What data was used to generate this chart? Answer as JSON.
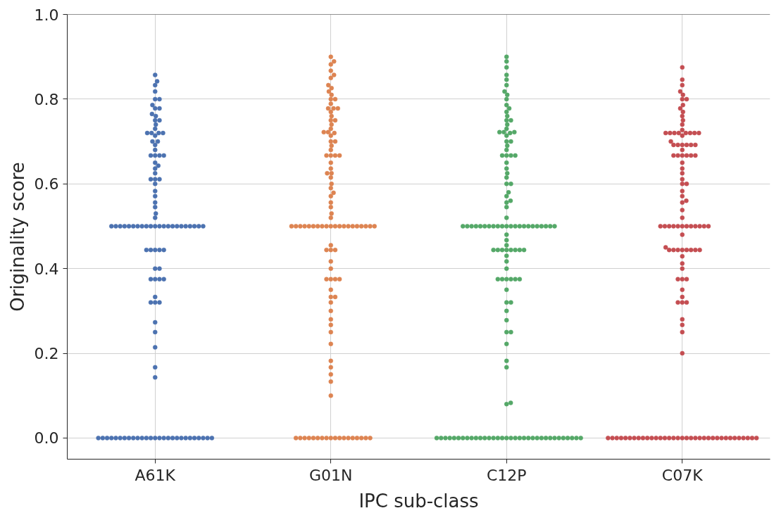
{
  "chart_data": {
    "type": "scatter",
    "xlabel": "IPC sub-class",
    "ylabel": "Originality score",
    "categories": [
      "A61K",
      "G01N",
      "C12P",
      "C07K"
    ],
    "ylim": [
      -0.05,
      1.0
    ],
    "yticks": [
      {
        "value": 0,
        "label": "0.0"
      },
      0.2,
      0.4,
      0.6,
      0.8,
      {
        "value": 1,
        "label": "1.0"
      }
    ],
    "grid": true,
    "marker": "circle",
    "series": [
      {
        "color": "#4c72b0",
        "x": [
          "A61K",
          "A61K",
          "A61K",
          "A61K",
          "A61K",
          "A61K",
          "A61K",
          "A61K",
          "A61K",
          "A61K",
          "A61K",
          "A61K",
          "A61K",
          "A61K",
          "A61K",
          "A61K",
          "A61K",
          "A61K",
          "A61K",
          "A61K",
          "A61K",
          "A61K",
          "A61K",
          "A61K",
          "A61K",
          "A61K",
          "A61K",
          "A61K",
          "A61K",
          "A61K",
          "A61K",
          "A61K",
          "A61K",
          "A61K",
          "A61K",
          "A61K",
          "A61K",
          "A61K",
          "A61K",
          "A61K",
          "A61K",
          "A61K",
          "A61K",
          "A61K",
          "A61K",
          "A61K",
          "A61K",
          "A61K",
          "A61K",
          "A61K",
          "A61K",
          "A61K",
          "A61K",
          "A61K",
          "A61K",
          "A61K",
          "A61K",
          "A61K",
          "A61K",
          "A61K",
          "A61K",
          "A61K",
          "A61K",
          "A61K",
          "A61K",
          "A61K",
          "A61K",
          "A61K",
          "A61K",
          "A61K",
          "A61K",
          "A61K",
          "A61K",
          "A61K",
          "A61K",
          "A61K",
          "A61K",
          "A61K",
          "A61K",
          "A61K",
          "A61K",
          "A61K",
          "A61K",
          "A61K",
          "A61K",
          "A61K",
          "A61K",
          "A61K",
          "A61K",
          "A61K",
          "A61K",
          "A61K",
          "A61K",
          "A61K",
          "A61K",
          "A61K",
          "A61K",
          "A61K",
          "A61K",
          "A61K",
          "A61K",
          "A61K",
          "A61K",
          "A61K",
          "A61K",
          "A61K",
          "A61K",
          "A61K",
          "A61K",
          "A61K",
          "A61K"
        ],
        "values": [
          0,
          0,
          0,
          0,
          0,
          0,
          0,
          0,
          0,
          0,
          0,
          0,
          0,
          0,
          0,
          0,
          0,
          0,
          0,
          0,
          0,
          0,
          0,
          0,
          0,
          0,
          0,
          0.143,
          0.167,
          0.214,
          0.25,
          0.273,
          0.32,
          0.32,
          0.32,
          0.333,
          0.375,
          0.375,
          0.375,
          0.375,
          0.4,
          0.4,
          0.444,
          0.444,
          0.444,
          0.444,
          0.444,
          0.5,
          0.5,
          0.5,
          0.5,
          0.5,
          0.5,
          0.5,
          0.5,
          0.5,
          0.5,
          0.5,
          0.5,
          0.5,
          0.5,
          0.5,
          0.5,
          0.5,
          0.5,
          0.5,
          0.5,
          0.5,
          0.5,
          0.52,
          0.53,
          0.545,
          0.556,
          0.571,
          0.583,
          0.6,
          0.611,
          0.611,
          0.611,
          0.625,
          0.636,
          0.643,
          0.65,
          0.667,
          0.667,
          0.667,
          0.667,
          0.68,
          0.692,
          0.7,
          0.7,
          0.714,
          0.72,
          0.72,
          0.72,
          0.72,
          0.73,
          0.74,
          0.75,
          0.75,
          0.76,
          0.765,
          0.778,
          0.778,
          0.786,
          0.8,
          0.8,
          0.818,
          0.833,
          0.842,
          0.857
        ]
      },
      {
        "color": "#dd8452",
        "x": [
          "G01N",
          "G01N",
          "G01N",
          "G01N",
          "G01N",
          "G01N",
          "G01N",
          "G01N",
          "G01N",
          "G01N",
          "G01N",
          "G01N",
          "G01N",
          "G01N",
          "G01N",
          "G01N",
          "G01N",
          "G01N",
          "G01N",
          "G01N",
          "G01N",
          "G01N",
          "G01N",
          "G01N",
          "G01N",
          "G01N",
          "G01N",
          "G01N",
          "G01N",
          "G01N",
          "G01N",
          "G01N",
          "G01N",
          "G01N",
          "G01N",
          "G01N",
          "G01N",
          "G01N",
          "G01N",
          "G01N",
          "G01N",
          "G01N",
          "G01N",
          "G01N",
          "G01N",
          "G01N",
          "G01N",
          "G01N",
          "G01N",
          "G01N",
          "G01N",
          "G01N",
          "G01N",
          "G01N",
          "G01N",
          "G01N",
          "G01N",
          "G01N",
          "G01N",
          "G01N",
          "G01N",
          "G01N",
          "G01N",
          "G01N",
          "G01N",
          "G01N",
          "G01N",
          "G01N",
          "G01N",
          "G01N",
          "G01N",
          "G01N",
          "G01N",
          "G01N",
          "G01N",
          "G01N",
          "G01N",
          "G01N",
          "G01N",
          "G01N",
          "G01N",
          "G01N",
          "G01N",
          "G01N",
          "G01N",
          "G01N",
          "G01N",
          "G01N",
          "G01N",
          "G01N",
          "G01N",
          "G01N",
          "G01N",
          "G01N",
          "G01N",
          "G01N",
          "G01N",
          "G01N",
          "G01N",
          "G01N",
          "G01N",
          "G01N",
          "G01N",
          "G01N",
          "G01N",
          "G01N",
          "G01N",
          "G01N",
          "G01N"
        ],
        "values": [
          0,
          0,
          0,
          0,
          0,
          0,
          0,
          0,
          0,
          0,
          0,
          0,
          0,
          0,
          0,
          0,
          0,
          0,
          0.1,
          0.133,
          0.15,
          0.167,
          0.182,
          0.222,
          0.25,
          0.267,
          0.28,
          0.3,
          0.32,
          0.333,
          0.333,
          0.35,
          0.375,
          0.375,
          0.375,
          0.375,
          0.4,
          0.417,
          0.444,
          0.444,
          0.444,
          0.455,
          0.5,
          0.5,
          0.5,
          0.5,
          0.5,
          0.5,
          0.5,
          0.5,
          0.5,
          0.5,
          0.5,
          0.5,
          0.5,
          0.5,
          0.5,
          0.5,
          0.5,
          0.5,
          0.5,
          0.5,
          0.52,
          0.53,
          0.545,
          0.556,
          0.571,
          0.579,
          0.59,
          0.6,
          0.615,
          0.625,
          0.625,
          0.636,
          0.65,
          0.667,
          0.667,
          0.667,
          0.667,
          0.68,
          0.69,
          0.7,
          0.7,
          0.714,
          0.72,
          0.722,
          0.722,
          0.73,
          0.74,
          0.75,
          0.75,
          0.76,
          0.77,
          0.778,
          0.778,
          0.778,
          0.789,
          0.8,
          0.8,
          0.81,
          0.818,
          0.826,
          0.833,
          0.85,
          0.857,
          0.867,
          0.882,
          0.889,
          0.9
        ]
      },
      {
        "color": "#55a868",
        "x": [
          "C12P",
          "C12P",
          "C12P",
          "C12P",
          "C12P",
          "C12P",
          "C12P",
          "C12P",
          "C12P",
          "C12P",
          "C12P",
          "C12P",
          "C12P",
          "C12P",
          "C12P",
          "C12P",
          "C12P",
          "C12P",
          "C12P",
          "C12P",
          "C12P",
          "C12P",
          "C12P",
          "C12P",
          "C12P",
          "C12P",
          "C12P",
          "C12P",
          "C12P",
          "C12P",
          "C12P",
          "C12P",
          "C12P",
          "C12P",
          "C12P",
          "C12P",
          "C12P",
          "C12P",
          "C12P",
          "C12P",
          "C12P",
          "C12P",
          "C12P",
          "C12P",
          "C12P",
          "C12P",
          "C12P",
          "C12P",
          "C12P",
          "C12P",
          "C12P",
          "C12P",
          "C12P",
          "C12P",
          "C12P",
          "C12P",
          "C12P",
          "C12P",
          "C12P",
          "C12P",
          "C12P",
          "C12P",
          "C12P",
          "C12P",
          "C12P",
          "C12P",
          "C12P",
          "C12P",
          "C12P",
          "C12P",
          "C12P",
          "C12P",
          "C12P",
          "C12P",
          "C12P",
          "C12P",
          "C12P",
          "C12P",
          "C12P",
          "C12P",
          "C12P",
          "C12P",
          "C12P",
          "C12P",
          "C12P",
          "C12P",
          "C12P",
          "C12P",
          "C12P",
          "C12P",
          "C12P",
          "C12P",
          "C12P",
          "C12P",
          "C12P",
          "C12P",
          "C12P",
          "C12P",
          "C12P",
          "C12P",
          "C12P",
          "C12P",
          "C12P",
          "C12P",
          "C12P",
          "C12P",
          "C12P",
          "C12P",
          "C12P",
          "C12P",
          "C12P",
          "C12P",
          "C12P",
          "C12P",
          "C12P",
          "C12P",
          "C12P",
          "C12P",
          "C12P",
          "C12P",
          "C12P",
          "C12P",
          "C12P",
          "C12P",
          "C12P",
          "C12P",
          "C12P",
          "C12P",
          "C12P",
          "C12P"
        ],
        "values": [
          0,
          0,
          0,
          0,
          0,
          0,
          0,
          0,
          0,
          0,
          0,
          0,
          0,
          0,
          0,
          0,
          0,
          0,
          0,
          0,
          0,
          0,
          0,
          0,
          0,
          0,
          0,
          0,
          0,
          0,
          0,
          0,
          0,
          0,
          0.08,
          0.083,
          0.167,
          0.182,
          0.222,
          0.25,
          0.25,
          0.278,
          0.3,
          0.32,
          0.32,
          0.35,
          0.375,
          0.375,
          0.375,
          0.375,
          0.375,
          0.375,
          0.4,
          0.417,
          0.43,
          0.444,
          0.444,
          0.444,
          0.444,
          0.444,
          0.444,
          0.444,
          0.444,
          0.455,
          0.467,
          0.48,
          0.5,
          0.5,
          0.5,
          0.5,
          0.5,
          0.5,
          0.5,
          0.5,
          0.5,
          0.5,
          0.5,
          0.5,
          0.5,
          0.5,
          0.5,
          0.5,
          0.5,
          0.5,
          0.5,
          0.5,
          0.5,
          0.5,
          0.52,
          0.545,
          0.556,
          0.56,
          0.571,
          0.58,
          0.6,
          0.6,
          0.615,
          0.625,
          0.636,
          0.65,
          0.667,
          0.667,
          0.667,
          0.667,
          0.68,
          0.69,
          0.7,
          0.7,
          0.714,
          0.72,
          0.722,
          0.722,
          0.722,
          0.73,
          0.74,
          0.75,
          0.75,
          0.76,
          0.77,
          0.778,
          0.786,
          0.8,
          0.81,
          0.818,
          0.833,
          0.846,
          0.857,
          0.875,
          0.889,
          0.9
        ]
      },
      {
        "color": "#c44e52",
        "x": [
          "C07K",
          "C07K",
          "C07K",
          "C07K",
          "C07K",
          "C07K",
          "C07K",
          "C07K",
          "C07K",
          "C07K",
          "C07K",
          "C07K",
          "C07K",
          "C07K",
          "C07K",
          "C07K",
          "C07K",
          "C07K",
          "C07K",
          "C07K",
          "C07K",
          "C07K",
          "C07K",
          "C07K",
          "C07K",
          "C07K",
          "C07K",
          "C07K",
          "C07K",
          "C07K",
          "C07K",
          "C07K",
          "C07K",
          "C07K",
          "C07K",
          "C07K",
          "C07K",
          "C07K",
          "C07K",
          "C07K",
          "C07K",
          "C07K",
          "C07K",
          "C07K",
          "C07K",
          "C07K",
          "C07K",
          "C07K",
          "C07K",
          "C07K",
          "C07K",
          "C07K",
          "C07K",
          "C07K",
          "C07K",
          "C07K",
          "C07K",
          "C07K",
          "C07K",
          "C07K",
          "C07K",
          "C07K",
          "C07K",
          "C07K",
          "C07K",
          "C07K",
          "C07K",
          "C07K",
          "C07K",
          "C07K",
          "C07K",
          "C07K",
          "C07K",
          "C07K",
          "C07K",
          "C07K",
          "C07K",
          "C07K",
          "C07K",
          "C07K",
          "C07K",
          "C07K",
          "C07K",
          "C07K",
          "C07K",
          "C07K",
          "C07K",
          "C07K",
          "C07K",
          "C07K",
          "C07K",
          "C07K",
          "C07K",
          "C07K",
          "C07K",
          "C07K",
          "C07K",
          "C07K",
          "C07K",
          "C07K",
          "C07K",
          "C07K",
          "C07K",
          "C07K",
          "C07K",
          "C07K",
          "C07K",
          "C07K",
          "C07K",
          "C07K",
          "C07K",
          "C07K",
          "C07K",
          "C07K",
          "C07K",
          "C07K",
          "C07K",
          "C07K",
          "C07K",
          "C07K",
          "C07K"
        ],
        "values": [
          0,
          0,
          0,
          0,
          0,
          0,
          0,
          0,
          0,
          0,
          0,
          0,
          0,
          0,
          0,
          0,
          0,
          0,
          0,
          0,
          0,
          0,
          0,
          0,
          0,
          0,
          0,
          0,
          0,
          0,
          0,
          0,
          0,
          0,
          0,
          0.2,
          0.25,
          0.267,
          0.28,
          0.32,
          0.32,
          0.32,
          0.333,
          0.35,
          0.375,
          0.375,
          0.375,
          0.4,
          0.412,
          0.429,
          0.444,
          0.444,
          0.444,
          0.444,
          0.444,
          0.444,
          0.444,
          0.444,
          0.45,
          0.48,
          0.5,
          0.5,
          0.5,
          0.5,
          0.5,
          0.5,
          0.5,
          0.5,
          0.5,
          0.5,
          0.5,
          0.5,
          0.52,
          0.538,
          0.556,
          0.56,
          0.571,
          0.583,
          0.6,
          0.6,
          0.611,
          0.625,
          0.636,
          0.65,
          0.667,
          0.667,
          0.667,
          0.667,
          0.667,
          0.667,
          0.68,
          0.692,
          0.692,
          0.692,
          0.692,
          0.692,
          0.692,
          0.7,
          0.714,
          0.72,
          0.72,
          0.72,
          0.72,
          0.72,
          0.72,
          0.72,
          0.72,
          0.727,
          0.74,
          0.75,
          0.76,
          0.77,
          0.778,
          0.786,
          0.8,
          0.8,
          0.81,
          0.818,
          0.833,
          0.846,
          0.875
        ]
      }
    ]
  }
}
